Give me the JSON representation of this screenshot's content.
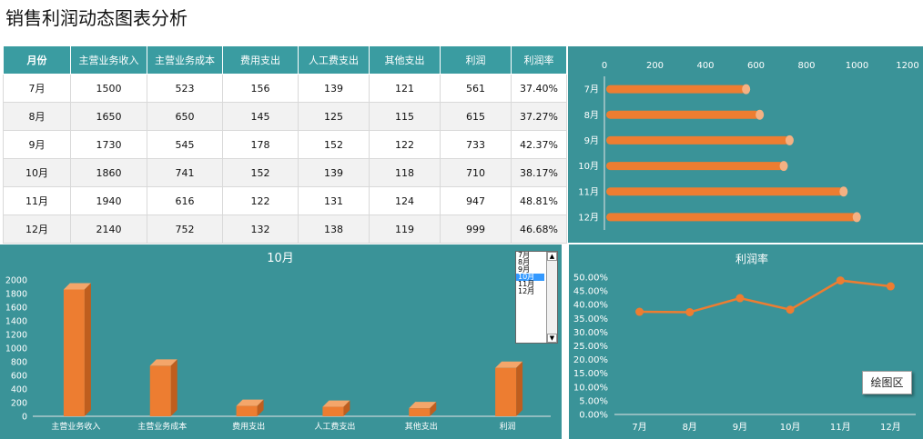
{
  "title": "销售利润动态图表分析",
  "table": {
    "headers": [
      "月份",
      "主营业务收入",
      "主营业务成本",
      "费用支出",
      "人工费支出",
      "其他支出",
      "利润",
      "利润率"
    ],
    "rows": [
      [
        "7月",
        "1500",
        "523",
        "156",
        "139",
        "121",
        "561",
        "37.40%"
      ],
      [
        "8月",
        "1650",
        "650",
        "145",
        "125",
        "115",
        "615",
        "37.27%"
      ],
      [
        "9月",
        "1730",
        "545",
        "178",
        "152",
        "122",
        "733",
        "42.37%"
      ],
      [
        "10月",
        "1860",
        "741",
        "152",
        "139",
        "118",
        "710",
        "38.17%"
      ],
      [
        "11月",
        "1940",
        "616",
        "122",
        "131",
        "124",
        "947",
        "48.81%"
      ],
      [
        "12月",
        "2140",
        "752",
        "132",
        "138",
        "119",
        "999",
        "46.68%"
      ]
    ]
  },
  "month_selector": {
    "options": [
      "7月",
      "8月",
      "9月",
      "10月",
      "11月",
      "12月"
    ],
    "selected": "10月"
  },
  "plot_area_tooltip": "绘图区",
  "colors": {
    "panel_bg": "#3a9398",
    "header_bg": "#3a9ca1",
    "accent": "#ed7d31",
    "selected": "#3399ff"
  },
  "chart_data": [
    {
      "type": "bar",
      "orientation": "horizontal",
      "categories": [
        "7月",
        "8月",
        "9月",
        "10月",
        "11月",
        "12月"
      ],
      "values": [
        561,
        615,
        733,
        710,
        947,
        999
      ],
      "xlim": [
        0,
        1200
      ],
      "x_ticks": [
        0,
        200,
        400,
        600,
        800,
        1000,
        1200
      ],
      "grid": false
    },
    {
      "type": "bar",
      "title": "10月",
      "categories": [
        "主营业务收入",
        "主营业务成本",
        "费用支出",
        "人工费支出",
        "其他支出",
        "利润"
      ],
      "values": [
        1860,
        741,
        152,
        139,
        118,
        710
      ],
      "ylim": [
        0,
        2000
      ],
      "y_ticks": [
        0,
        200,
        400,
        600,
        800,
        1000,
        1200,
        1400,
        1600,
        1800,
        2000
      ],
      "grid": false
    },
    {
      "type": "line",
      "title": "利润率",
      "categories": [
        "7月",
        "8月",
        "9月",
        "10月",
        "11月",
        "12月"
      ],
      "values": [
        37.4,
        37.27,
        42.37,
        38.17,
        48.81,
        46.68
      ],
      "ylim": [
        0,
        50
      ],
      "y_ticks": [
        "0.00%",
        "5.00%",
        "10.00%",
        "15.00%",
        "20.00%",
        "25.00%",
        "30.00%",
        "35.00%",
        "40.00%",
        "45.00%",
        "50.00%"
      ],
      "grid": false
    }
  ]
}
